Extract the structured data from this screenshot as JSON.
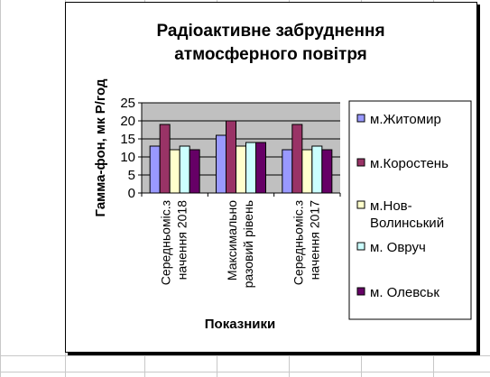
{
  "colors": {
    "plot_bg": "#c0c0c0",
    "gridline": "#000000",
    "sheet_grid": "#c8c8c8"
  },
  "chart_data": {
    "type": "bar",
    "title": [
      "Радіоактивне забруднення",
      "атмосферного повітря"
    ],
    "xlabel": "Показники",
    "ylabel": "Гамма-фон, мк Р/год",
    "ylim": [
      0,
      25
    ],
    "yticks": [
      0,
      5,
      10,
      15,
      20,
      25
    ],
    "grid": true,
    "legend_position": "right",
    "categories": [
      [
        "Середньоміс.з",
        "начення 2018"
      ],
      [
        "Максимально",
        "разовий рівень"
      ],
      [
        "Середньоміс.з",
        "начення 2017"
      ]
    ],
    "series": [
      {
        "name": "м.Житомир",
        "color": "#9999ff",
        "values": [
          13,
          16,
          12
        ]
      },
      {
        "name": "м.Коростень",
        "color": "#993366",
        "values": [
          19,
          20,
          19
        ]
      },
      {
        "name": [
          "м.Нов-",
          "Волинський"
        ],
        "color": "#ffffcc",
        "values": [
          12,
          13,
          12
        ]
      },
      {
        "name": "м. Овруч",
        "color": "#ccffff",
        "values": [
          13,
          14,
          13
        ]
      },
      {
        "name": "м. Олевськ",
        "color": "#660066",
        "values": [
          12,
          14,
          12
        ]
      }
    ]
  }
}
